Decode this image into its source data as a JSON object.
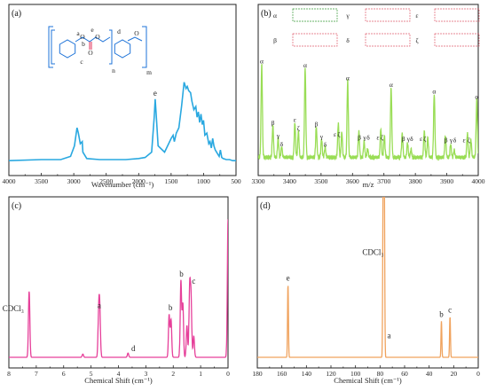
{
  "chart_data": [
    {
      "panel": "(a)",
      "type": "line",
      "xlabel": "Wavenumber (cm⁻¹)",
      "xlim": [
        4000,
        500
      ],
      "xticks": [
        "4000",
        "3500",
        "3000",
        "2500",
        "2000",
        "1500",
        "1000",
        "500"
      ],
      "color": "#29a8e0",
      "peak_labels": [
        {
          "label": "e",
          "x": 1745
        }
      ],
      "structure_labels": [
        "a",
        "b",
        "c",
        "d",
        "e",
        "n",
        "m"
      ],
      "x": [
        4000,
        3500,
        3200,
        3050,
        2990,
        2950,
        2930,
        2900,
        2870,
        2860,
        2800,
        2600,
        2400,
        2200,
        2000,
        1900,
        1800,
        1760,
        1745,
        1730,
        1700,
        1600,
        1500,
        1470,
        1450,
        1420,
        1380,
        1340,
        1300,
        1270,
        1250,
        1230,
        1200,
        1180,
        1150,
        1120,
        1100,
        1080,
        1060,
        1040,
        1020,
        1000,
        980,
        950,
        920,
        900,
        880,
        860,
        840,
        820,
        800,
        780,
        760,
        740,
        720,
        700,
        650,
        600,
        550,
        500
      ],
      "y": [
        0.04,
        0.05,
        0.05,
        0.08,
        0.18,
        0.35,
        0.3,
        0.2,
        0.22,
        0.12,
        0.06,
        0.05,
        0.05,
        0.05,
        0.06,
        0.07,
        0.12,
        0.45,
        0.62,
        0.48,
        0.18,
        0.12,
        0.25,
        0.28,
        0.22,
        0.3,
        0.35,
        0.55,
        0.78,
        0.72,
        0.74,
        0.7,
        0.68,
        0.6,
        0.52,
        0.55,
        0.45,
        0.5,
        0.4,
        0.48,
        0.38,
        0.42,
        0.28,
        0.3,
        0.2,
        0.22,
        0.16,
        0.25,
        0.18,
        0.14,
        0.12,
        0.1,
        0.08,
        0.14,
        0.07,
        0.06,
        0.05,
        0.05,
        0.04,
        0.04
      ]
    },
    {
      "panel": "(b)",
      "type": "line",
      "xlabel": "m/z",
      "xlim": [
        3250,
        4000
      ],
      "xticks": [
        "3300",
        "3400",
        "3500",
        "3600",
        "3700",
        "3800",
        "3900",
        "4000"
      ],
      "color": "#99dd55",
      "legend": [
        "α",
        "γ",
        "ε",
        "β",
        "δ",
        "ζ"
      ],
      "peak_labels": [
        {
          "label": "α",
          "x": 3262
        },
        {
          "label": "β",
          "x": 3300
        },
        {
          "label": "γ",
          "x": 3318
        },
        {
          "label": "δ",
          "x": 3330
        },
        {
          "label": "ε",
          "x": 3375
        },
        {
          "label": "ζ",
          "x": 3387
        },
        {
          "label": "α",
          "x": 3410
        },
        {
          "label": "β",
          "x": 3448
        },
        {
          "label": "γ",
          "x": 3466
        },
        {
          "label": "δ",
          "x": 3478
        },
        {
          "label": "ε",
          "x": 3512
        },
        {
          "label": "ζ",
          "x": 3525
        },
        {
          "label": "α",
          "x": 3555
        },
        {
          "label": "β",
          "x": 3595
        },
        {
          "label": "γ",
          "x": 3613
        },
        {
          "label": "δ",
          "x": 3625
        },
        {
          "label": "ε",
          "x": 3658
        },
        {
          "label": "ζ",
          "x": 3672
        },
        {
          "label": "α",
          "x": 3703
        },
        {
          "label": "β",
          "x": 3745
        },
        {
          "label": "γ",
          "x": 3762
        },
        {
          "label": "δ",
          "x": 3773
        },
        {
          "label": "ε",
          "x": 3805
        },
        {
          "label": "ζ",
          "x": 3818
        },
        {
          "label": "α",
          "x": 3850
        },
        {
          "label": "β",
          "x": 3890
        },
        {
          "label": "γ",
          "x": 3908
        },
        {
          "label": "δ",
          "x": 3920
        },
        {
          "label": "ε",
          "x": 3952
        },
        {
          "label": "ζ",
          "x": 3968
        },
        {
          "label": "α",
          "x": 3995
        }
      ],
      "cycle_peaks": [
        {
          "dx": 0,
          "h": 0.88
        },
        {
          "dx": 38,
          "h": 0.3
        },
        {
          "dx": 56,
          "h": 0.18
        },
        {
          "dx": 68,
          "h": 0.1
        },
        {
          "dx": 113,
          "h": 0.33
        },
        {
          "dx": 125,
          "h": 0.25
        }
      ],
      "cycle_starts": [
        3262,
        3410,
        3555,
        3703,
        3850,
        3995
      ],
      "cycle_scale": [
        1.0,
        0.96,
        0.82,
        0.75,
        0.68,
        0.62
      ]
    },
    {
      "panel": "(c)",
      "type": "line",
      "xlabel": "Chemical Shift (cm⁻¹)",
      "xlim": [
        8,
        0
      ],
      "xticks": [
        "8",
        "7",
        "6",
        "5",
        "4",
        "3",
        "2",
        "1",
        "0"
      ],
      "color": "#e6409a",
      "annotations": [
        {
          "label": "CDCl₃",
          "x": 7.26
        },
        {
          "label": "a",
          "x": 4.7
        },
        {
          "label": "d",
          "x": 3.65
        },
        {
          "label": "b",
          "x": 2.1
        },
        {
          "label": "b",
          "x": 1.7
        },
        {
          "label": "c",
          "x": 1.38
        }
      ],
      "peaks": [
        {
          "x": 7.26,
          "h": 0.62
        },
        {
          "x": 5.3,
          "h": 0.03
        },
        {
          "x": 4.72,
          "h": 0.42
        },
        {
          "x": 4.68,
          "h": 0.4
        },
        {
          "x": 3.65,
          "h": 0.04
        },
        {
          "x": 2.15,
          "h": 0.4
        },
        {
          "x": 2.08,
          "h": 0.35
        },
        {
          "x": 1.72,
          "h": 0.72
        },
        {
          "x": 1.65,
          "h": 0.5
        },
        {
          "x": 1.5,
          "h": 0.3
        },
        {
          "x": 1.4,
          "h": 0.65
        },
        {
          "x": 1.35,
          "h": 0.55
        },
        {
          "x": 1.25,
          "h": 0.2
        },
        {
          "x": 0.0,
          "h": 1.3
        }
      ]
    },
    {
      "panel": "(d)",
      "type": "line",
      "xlabel": "Chemical Shift (cm⁻¹)",
      "xlim": [
        180,
        0
      ],
      "xticks": [
        "180",
        "160",
        "140",
        "120",
        "100",
        "80",
        "60",
        "40",
        "20",
        "0"
      ],
      "color": "#f0a35e",
      "annotations": [
        {
          "label": "e",
          "x": 155
        },
        {
          "label": "CDCl₃",
          "x": 77
        },
        {
          "label": "a",
          "x": 77
        },
        {
          "label": "b",
          "x": 30
        },
        {
          "label": "c",
          "x": 23
        }
      ],
      "peaks": [
        {
          "x": 155,
          "h": 0.68
        },
        {
          "x": 77.5,
          "h": 1.3
        },
        {
          "x": 77.0,
          "h": 1.3
        },
        {
          "x": 76.5,
          "h": 1.3
        },
        {
          "x": 30,
          "h": 0.34
        },
        {
          "x": 23,
          "h": 0.38
        }
      ]
    }
  ]
}
